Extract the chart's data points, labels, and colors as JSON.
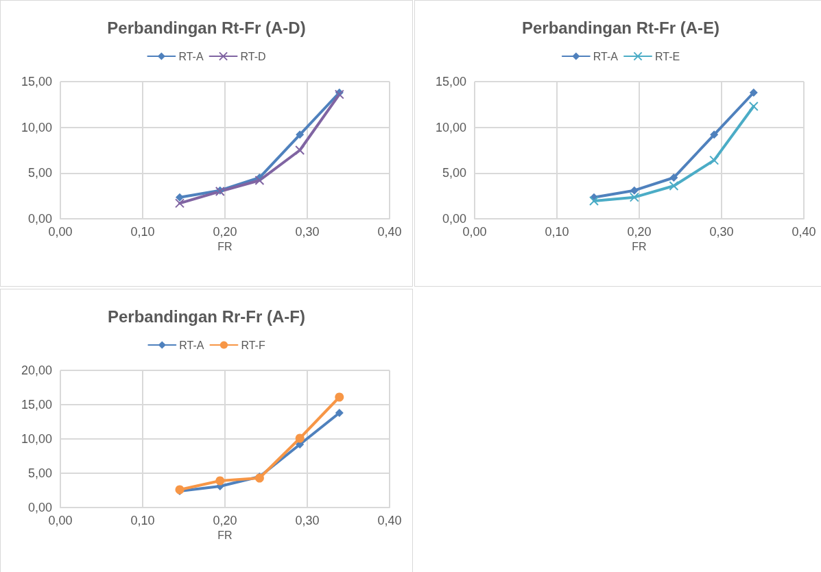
{
  "chart_data": [
    {
      "type": "line",
      "title": "Perbandingan Rt-Fr (A-D)",
      "xlabel": "FR",
      "grid": true,
      "legend": "top",
      "line_style": "solid",
      "xlim": [
        0,
        0.4
      ],
      "xticks": [
        {
          "value": 0,
          "label": "0,00"
        },
        {
          "value": 0.1,
          "label": "0,10"
        },
        {
          "value": 0.2,
          "label": "0,20"
        },
        {
          "value": 0.3,
          "label": "0,30"
        },
        {
          "value": 0.4,
          "label": "0,40"
        }
      ],
      "ylim": [
        0,
        15
      ],
      "yticks": [
        {
          "value": 0,
          "label": "0,00"
        },
        {
          "value": 5,
          "label": "5,00"
        },
        {
          "value": 10,
          "label": "10,00"
        },
        {
          "value": 15,
          "label": "15,00"
        }
      ],
      "x": [
        0.145,
        0.194,
        0.242,
        0.291,
        0.339
      ],
      "series": [
        {
          "name": "RT-A",
          "color": "#4f81bd",
          "marker": "diamond",
          "values": [
            2.35,
            3.1,
            4.5,
            9.2,
            13.8
          ]
        },
        {
          "name": "RT-D",
          "color": "#8064a2",
          "marker": "cross",
          "values": [
            1.7,
            3.0,
            4.2,
            7.5,
            13.6
          ]
        }
      ]
    },
    {
      "type": "line",
      "title": "Perbandingan Rt-Fr (A-E)",
      "xlabel": "FR",
      "grid": true,
      "legend": "top",
      "line_style": "solid",
      "xlim": [
        0,
        0.4
      ],
      "xticks": [
        {
          "value": 0,
          "label": "0,00"
        },
        {
          "value": 0.1,
          "label": "0,10"
        },
        {
          "value": 0.2,
          "label": "0,20"
        },
        {
          "value": 0.3,
          "label": "0,30"
        },
        {
          "value": 0.4,
          "label": "0,40"
        }
      ],
      "ylim": [
        0,
        15
      ],
      "yticks": [
        {
          "value": 0,
          "label": "0,00"
        },
        {
          "value": 5,
          "label": "5,00"
        },
        {
          "value": 10,
          "label": "10,00"
        },
        {
          "value": 15,
          "label": "15,00"
        }
      ],
      "x": [
        0.145,
        0.194,
        0.242,
        0.291,
        0.339
      ],
      "series": [
        {
          "name": "RT-A",
          "color": "#4f81bd",
          "marker": "diamond",
          "values": [
            2.35,
            3.1,
            4.5,
            9.2,
            13.8
          ]
        },
        {
          "name": "RT-E",
          "color": "#4bacc6",
          "marker": "cross",
          "values": [
            1.95,
            2.35,
            3.6,
            6.4,
            12.3
          ]
        }
      ]
    },
    {
      "type": "line",
      "title": "Perbandingan Rr-Fr (A-F)",
      "xlabel": "FR",
      "grid": true,
      "legend": "top",
      "line_style": "solid",
      "xlim": [
        0,
        0.4
      ],
      "xticks": [
        {
          "value": 0,
          "label": "0,00"
        },
        {
          "value": 0.1,
          "label": "0,10"
        },
        {
          "value": 0.2,
          "label": "0,20"
        },
        {
          "value": 0.3,
          "label": "0,30"
        },
        {
          "value": 0.4,
          "label": "0,40"
        }
      ],
      "ylim": [
        0,
        20
      ],
      "yticks": [
        {
          "value": 0,
          "label": "0,00"
        },
        {
          "value": 5,
          "label": "5,00"
        },
        {
          "value": 10,
          "label": "10,00"
        },
        {
          "value": 15,
          "label": "15,00"
        },
        {
          "value": 20,
          "label": "20,00"
        }
      ],
      "x": [
        0.145,
        0.194,
        0.242,
        0.291,
        0.339
      ],
      "series": [
        {
          "name": "RT-A",
          "color": "#4f81bd",
          "marker": "diamond",
          "values": [
            2.4,
            3.1,
            4.5,
            9.2,
            13.8
          ]
        },
        {
          "name": "RT-F",
          "color": "#f79646",
          "marker": "circle",
          "values": [
            2.6,
            3.9,
            4.3,
            10.1,
            16.1
          ]
        }
      ]
    }
  ]
}
